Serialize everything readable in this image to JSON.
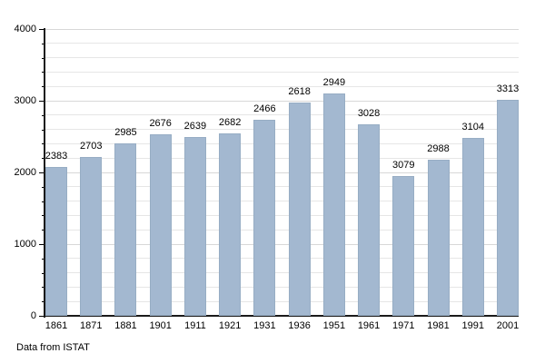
{
  "chart_data": {
    "type": "bar",
    "title": "",
    "xlabel": "",
    "ylabel": "",
    "source_note": "Data from ISTAT",
    "categories": [
      "1861",
      "1871",
      "1881",
      "1901",
      "1911",
      "1921",
      "1931",
      "1936",
      "1951",
      "1961",
      "1971",
      "1981",
      "1991",
      "2001"
    ],
    "values": [
      2383,
      2703,
      2985,
      2676,
      2639,
      2682,
      2466,
      2618,
      2949,
      3028,
      3079,
      2988,
      3104,
      3313
    ],
    "bar_rendered_heights": [
      2080,
      2210,
      2405,
      2530,
      2490,
      2540,
      2735,
      2980,
      3100,
      2670,
      1945,
      2180,
      2480,
      3010
    ],
    "rendering_note": "in source image the printed value labels sit above bars whose drawn heights differ from the labeled values",
    "ylim": [
      0,
      4000
    ],
    "y_tick_labels": [
      "0",
      "1000",
      "2000",
      "3000",
      "4000"
    ],
    "y_major_step": 1000,
    "y_minor_step": 200,
    "grid": "horizontal gridlines every 200, light gray, behind bars",
    "legend": "none",
    "colors": {
      "bar_fill": "#a3b8d0",
      "bar_border": "#97adc4",
      "axis": "#1a1a1a",
      "grid_minor": "#e6e6e6",
      "grid_major": "#d8d8d8",
      "text": "#000000",
      "background": "#ffffff"
    }
  }
}
